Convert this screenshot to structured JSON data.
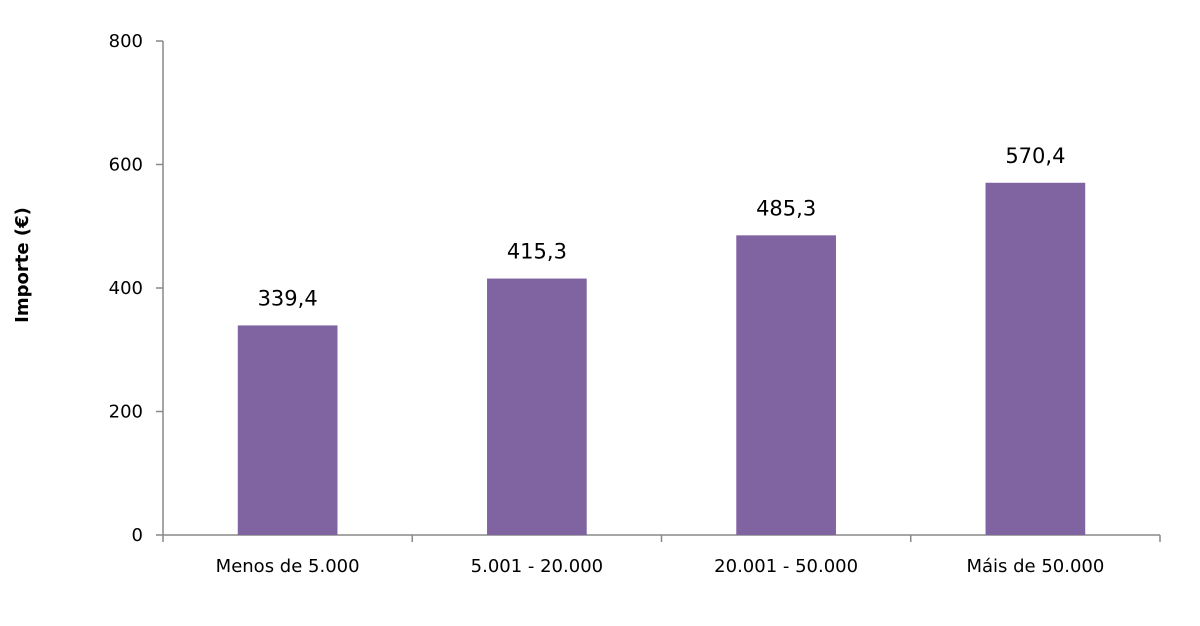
{
  "chart_data": {
    "type": "bar",
    "title": "",
    "xlabel": "",
    "ylabel": "Importe (€)",
    "categories": [
      "Menos de 5.000",
      "5.001 - 20.000",
      "20.001 - 50.000",
      "Máis de 50.000"
    ],
    "values": [
      339.4,
      415.3,
      485.3,
      570.4
    ],
    "data_labels": [
      "339,4",
      "415,3",
      "485,3",
      "570,4"
    ],
    "ylim": [
      0,
      800
    ],
    "yticks": [
      0,
      200,
      400,
      600,
      800
    ],
    "ytick_labels": [
      "0",
      "200",
      "400",
      "600",
      "800"
    ],
    "grid": false,
    "legend": "none",
    "bar_color": "#8064a2",
    "axis_color": "#888888"
  }
}
